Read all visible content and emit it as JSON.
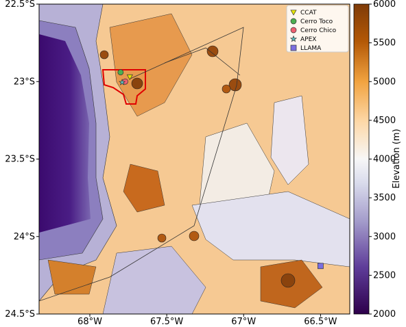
{
  "map": {
    "xlim": [
      -68.33,
      -66.31
    ],
    "ylim": [
      -24.5,
      -22.5
    ],
    "xticks": [
      {
        "value": -68,
        "label": "68°W"
      },
      {
        "value": -67.5,
        "label": "67.5°W"
      },
      {
        "value": -67,
        "label": "67°W"
      },
      {
        "value": -66.5,
        "label": "66.5°W"
      }
    ],
    "yticks": [
      {
        "value": -22.5,
        "label": "22.5°S"
      },
      {
        "value": -23,
        "label": "23°S"
      },
      {
        "value": -23.5,
        "label": "23.5°S"
      },
      {
        "value": -24,
        "label": "24°S"
      },
      {
        "value": -24.5,
        "label": "24.5°S"
      }
    ],
    "colorbar": {
      "label": "Elevation (m)",
      "lim": [
        2000,
        6000
      ],
      "ticks": [
        2000,
        2500,
        3000,
        3500,
        4000,
        4500,
        5000,
        5500,
        6000
      ]
    },
    "sites": [
      {
        "name": "CCAT",
        "marker": "triangle",
        "color": "#e6e600",
        "lon": -67.74,
        "lat": -22.97
      },
      {
        "name": "Cerro Toco",
        "marker": "circle",
        "color": "#4caf50",
        "lon": -67.8,
        "lat": -22.94
      },
      {
        "name": "Cerro Chico",
        "marker": "circle",
        "color": "#f06070",
        "lon": -67.77,
        "lat": -23.0
      },
      {
        "name": "APEX",
        "marker": "star",
        "color": "#5cc0c0",
        "lon": -67.79,
        "lat": -23.005
      },
      {
        "name": "LLAMA",
        "marker": "square",
        "color": "#7b6fe0",
        "lon": -66.5,
        "lat": -24.19
      }
    ]
  }
}
